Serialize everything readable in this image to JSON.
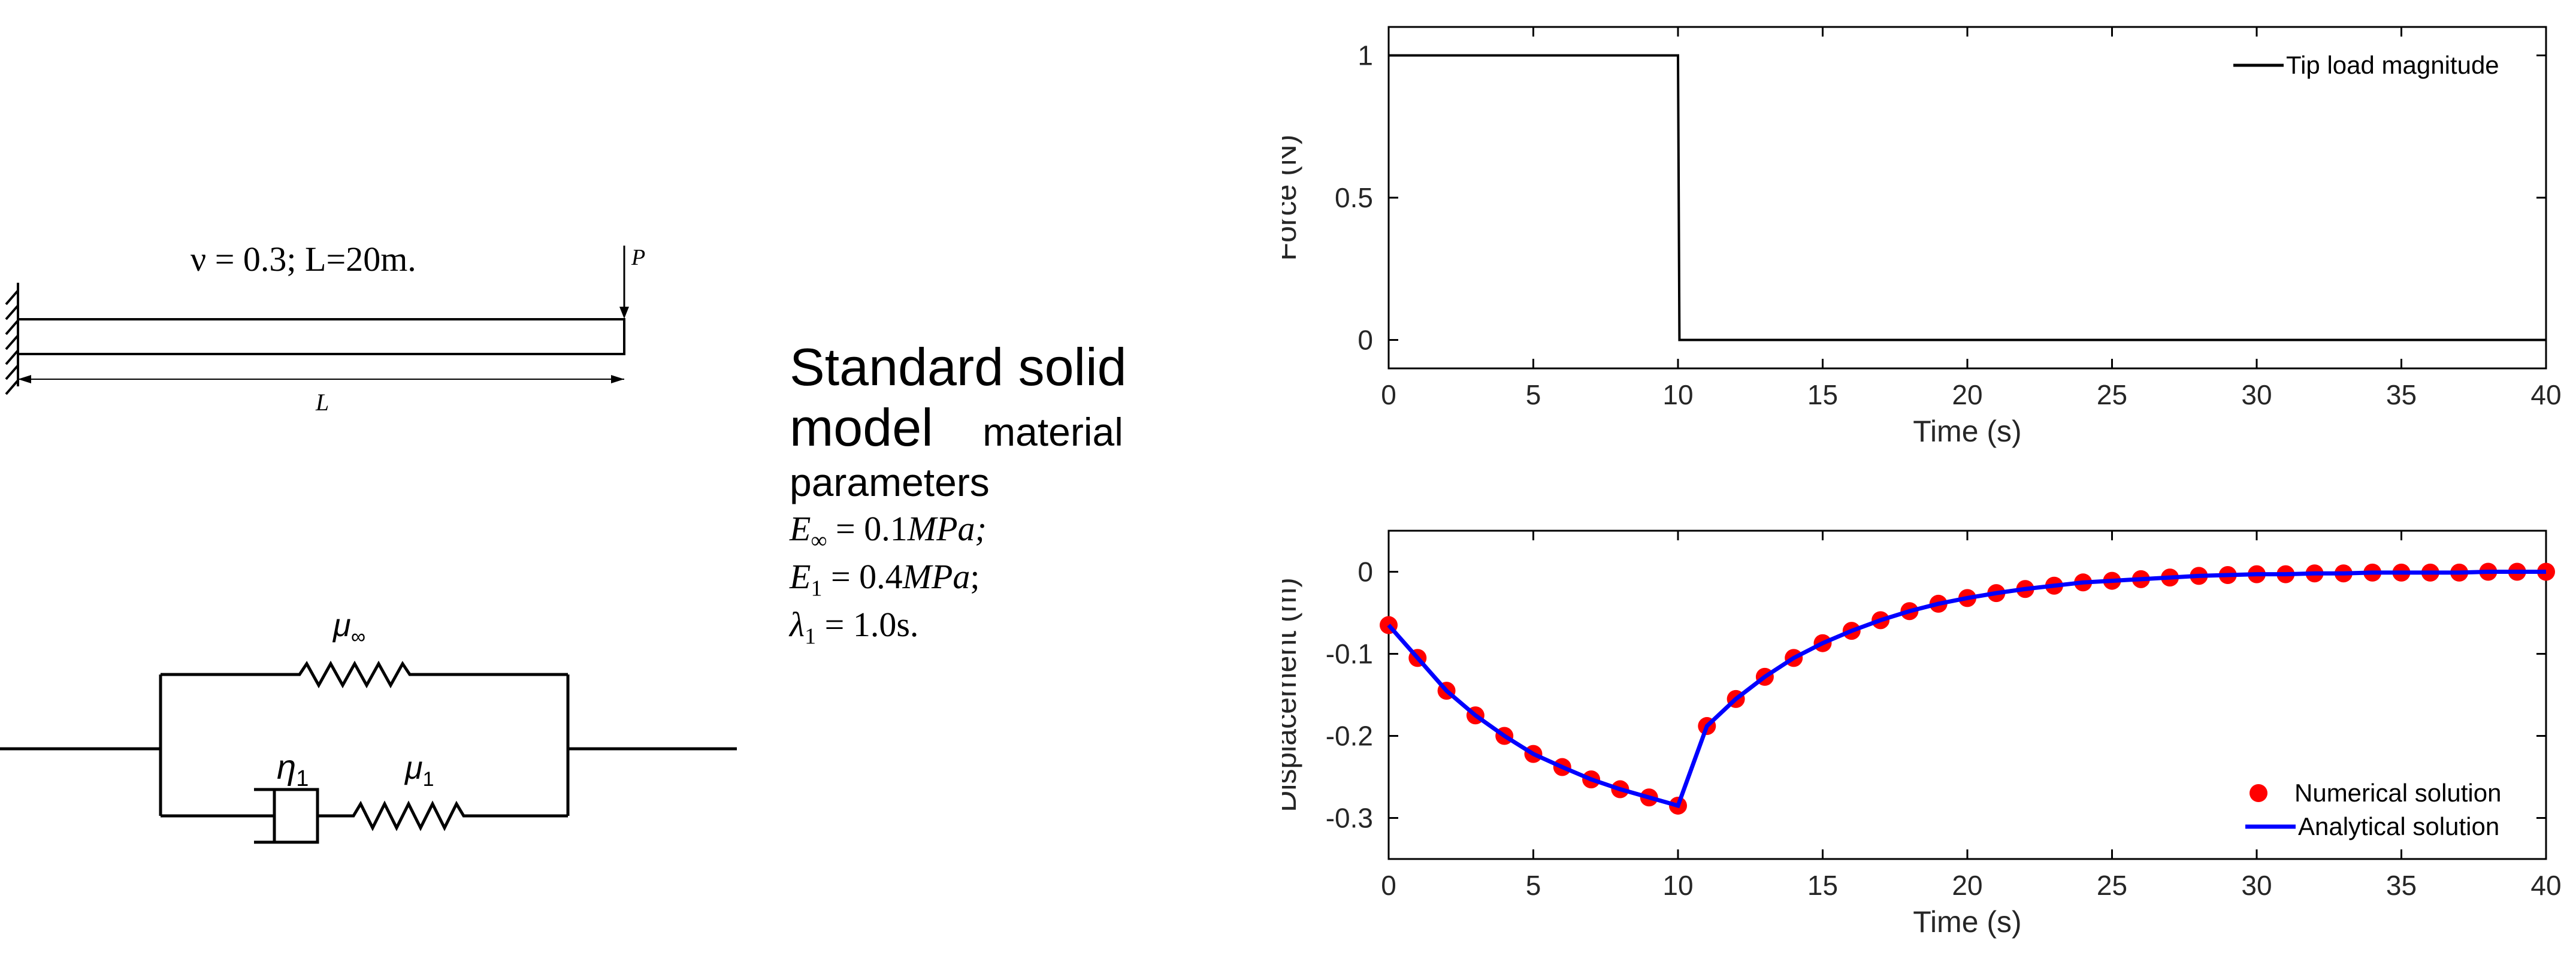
{
  "beam": {
    "params_label": "ν = 0.3; L=20m.",
    "load_label": "P",
    "length_label": "L"
  },
  "material": {
    "title_line1": "Standard solid",
    "title_word": "model",
    "title_word2": "material",
    "title_line3": "parameters",
    "eq1_sym": "E",
    "eq1_sub": "∞",
    "eq1_rest": " = 0.1",
    "eq1_unit": "MPa;",
    "eq2_sym": "E",
    "eq2_sub": "1",
    "eq2_rest": " = 0.4",
    "eq2_unit": "MPa",
    "eq2_tail": ";",
    "eq3_sym": "λ",
    "eq3_sub": "1",
    "eq3_rest": " = 1.0s."
  },
  "spring_model": {
    "mu_inf_sym": "μ",
    "mu_inf_sub": "∞",
    "eta_sym": "η",
    "eta_sub": "1",
    "mu1_sym": "μ",
    "mu1_sub": "1"
  },
  "chart_data": [
    {
      "type": "line",
      "title": "",
      "xlabel": "Time (s)",
      "ylabel": "Force (N)",
      "xlim": [
        0,
        40
      ],
      "ylim": [
        -0.1,
        1.1
      ],
      "x_ticks": [
        "0",
        "5",
        "10",
        "15",
        "20",
        "25",
        "30",
        "35",
        "40"
      ],
      "y_ticks": [
        "0",
        "0.5",
        "1"
      ],
      "legend": "top-right",
      "grid": false,
      "series": [
        {
          "name": "Tip load magnitude",
          "color": "#000000",
          "x": [
            0,
            10,
            10.05,
            40
          ],
          "y": [
            1,
            1,
            0,
            0
          ]
        }
      ]
    },
    {
      "type": "line",
      "title": "",
      "xlabel": "Time (s)",
      "ylabel": "Displacement (m)",
      "xlim": [
        0,
        40
      ],
      "ylim": [
        -0.35,
        0.05
      ],
      "x_ticks": [
        "0",
        "5",
        "10",
        "15",
        "20",
        "25",
        "30",
        "35",
        "40"
      ],
      "y_ticks": [
        "0",
        "-0.1",
        "-0.2",
        "-0.3"
      ],
      "legend": "bottom-right",
      "grid": false,
      "series": [
        {
          "name": "Numerical solution",
          "type": "scatter",
          "color": "#ff0000",
          "x": [
            0,
            1,
            2,
            3,
            4,
            5,
            6,
            7,
            8,
            9,
            10,
            11,
            12,
            13,
            14,
            15,
            16,
            17,
            18,
            19,
            20,
            21,
            22,
            23,
            24,
            25,
            26,
            27,
            28,
            29,
            30,
            31,
            32,
            33,
            34,
            35,
            36,
            37,
            38,
            39,
            40
          ],
          "y": [
            -0.065,
            -0.105,
            -0.145,
            -0.175,
            -0.2,
            -0.222,
            -0.238,
            -0.253,
            -0.265,
            -0.275,
            -0.285,
            -0.188,
            -0.155,
            -0.128,
            -0.105,
            -0.087,
            -0.072,
            -0.059,
            -0.048,
            -0.039,
            -0.032,
            -0.026,
            -0.021,
            -0.017,
            -0.013,
            -0.011,
            -0.009,
            -0.007,
            -0.005,
            -0.004,
            -0.003,
            -0.003,
            -0.002,
            -0.002,
            -0.001,
            -0.001,
            -0.001,
            -0.001,
            0,
            0,
            0
          ]
        },
        {
          "name": "Analytical solution",
          "type": "line",
          "color": "#0000ff",
          "x": [
            0,
            1,
            2,
            3,
            4,
            5,
            6,
            7,
            8,
            9,
            10,
            11,
            12,
            13,
            14,
            15,
            16,
            17,
            18,
            19,
            20,
            21,
            22,
            23,
            24,
            25,
            26,
            27,
            28,
            29,
            30,
            31,
            32,
            33,
            34,
            35,
            36,
            37,
            38,
            39,
            40
          ],
          "y": [
            -0.065,
            -0.105,
            -0.145,
            -0.175,
            -0.2,
            -0.222,
            -0.238,
            -0.253,
            -0.265,
            -0.275,
            -0.285,
            -0.188,
            -0.155,
            -0.128,
            -0.105,
            -0.087,
            -0.072,
            -0.059,
            -0.048,
            -0.039,
            -0.032,
            -0.026,
            -0.021,
            -0.017,
            -0.013,
            -0.011,
            -0.009,
            -0.007,
            -0.005,
            -0.004,
            -0.003,
            -0.003,
            -0.002,
            -0.002,
            -0.001,
            -0.001,
            -0.001,
            -0.001,
            0,
            0,
            0
          ]
        }
      ]
    }
  ]
}
